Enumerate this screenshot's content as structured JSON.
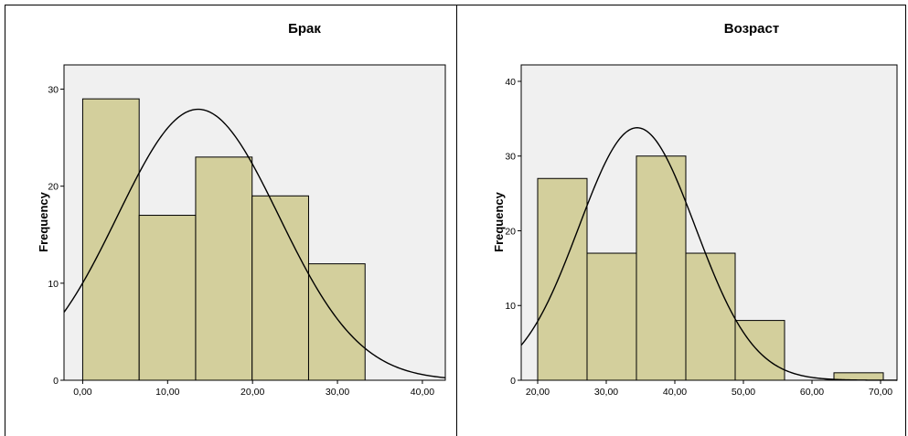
{
  "chart_data": [
    {
      "type": "bar",
      "title": "Брак",
      "xlabel": "",
      "ylabel": "Frequency",
      "xlim": [
        -2.2,
        42.7
      ],
      "ylim": [
        0,
        32.5
      ],
      "bins": [
        {
          "x0": 0.0,
          "x1": 6.65,
          "value": 29
        },
        {
          "x0": 6.65,
          "x1": 13.3,
          "value": 17
        },
        {
          "x0": 13.3,
          "x1": 19.95,
          "value": 23
        },
        {
          "x0": 19.95,
          "x1": 26.6,
          "value": 19
        },
        {
          "x0": 26.6,
          "x1": 33.25,
          "value": 12
        }
      ],
      "x_ticks": [
        0,
        10,
        20,
        30,
        40
      ],
      "x_tick_labels": [
        "0,00",
        "10,00",
        "20,00",
        "30,00",
        "40,00"
      ],
      "y_ticks": [
        0,
        10,
        20,
        30
      ],
      "y_tick_labels": [
        "0",
        "10",
        "20",
        "30"
      ],
      "normal_curve": {
        "mean": 13.6,
        "sd": 9.5,
        "n": 100,
        "bin_width": 6.65
      },
      "colors": {
        "bar_fill": "#d3cf9c",
        "plot_bg": "#f0f0f0",
        "curve": "#000000"
      },
      "grid": false
    },
    {
      "type": "bar",
      "title": "Возраст",
      "xlabel": "",
      "ylabel": "Frequency",
      "xlim": [
        17.6,
        72.4
      ],
      "ylim": [
        0,
        42.2
      ],
      "bins": [
        {
          "x0": 20.0,
          "x1": 27.2,
          "value": 27
        },
        {
          "x0": 27.2,
          "x1": 34.4,
          "value": 17
        },
        {
          "x0": 34.4,
          "x1": 41.6,
          "value": 30
        },
        {
          "x0": 41.6,
          "x1": 48.8,
          "value": 17
        },
        {
          "x0": 48.8,
          "x1": 56.0,
          "value": 8
        },
        {
          "x0": 56.0,
          "x1": 63.2,
          "value": 0
        },
        {
          "x0": 63.2,
          "x1": 70.4,
          "value": 1
        }
      ],
      "x_ticks": [
        20,
        30,
        40,
        50,
        60,
        70
      ],
      "x_tick_labels": [
        "20,00",
        "30,00",
        "40,00",
        "50,00",
        "60,00",
        "70,00"
      ],
      "y_ticks": [
        0,
        10,
        20,
        30,
        40
      ],
      "y_tick_labels": [
        "0",
        "10",
        "20",
        "30",
        "40"
      ],
      "normal_curve": {
        "mean": 34.5,
        "sd": 8.5,
        "n": 100,
        "bin_width": 7.2
      },
      "colors": {
        "bar_fill": "#d3cf9c",
        "plot_bg": "#f0f0f0",
        "curve": "#000000"
      },
      "grid": false
    }
  ]
}
